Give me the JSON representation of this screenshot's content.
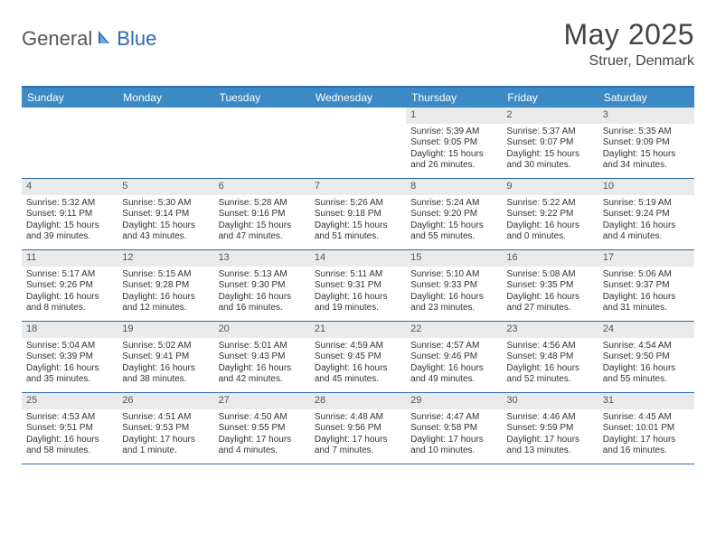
{
  "logo": {
    "word1": "General",
    "word2": "Blue"
  },
  "title": "May 2025",
  "location": "Struer, Denmark",
  "day_names": [
    "Sunday",
    "Monday",
    "Tuesday",
    "Wednesday",
    "Thursday",
    "Friday",
    "Saturday"
  ],
  "colors": {
    "header_bar": "#3b8ac4",
    "rule": "#2f6aad",
    "daynum_bg": "#e9eaeb",
    "text": "#333333",
    "logo_accent": "#2f6aad"
  },
  "weeks": [
    [
      {
        "n": "",
        "sr": "",
        "ss": "",
        "dl": ""
      },
      {
        "n": "",
        "sr": "",
        "ss": "",
        "dl": ""
      },
      {
        "n": "",
        "sr": "",
        "ss": "",
        "dl": ""
      },
      {
        "n": "",
        "sr": "",
        "ss": "",
        "dl": ""
      },
      {
        "n": "1",
        "sr": "Sunrise: 5:39 AM",
        "ss": "Sunset: 9:05 PM",
        "dl": "Daylight: 15 hours and 26 minutes."
      },
      {
        "n": "2",
        "sr": "Sunrise: 5:37 AM",
        "ss": "Sunset: 9:07 PM",
        "dl": "Daylight: 15 hours and 30 minutes."
      },
      {
        "n": "3",
        "sr": "Sunrise: 5:35 AM",
        "ss": "Sunset: 9:09 PM",
        "dl": "Daylight: 15 hours and 34 minutes."
      }
    ],
    [
      {
        "n": "4",
        "sr": "Sunrise: 5:32 AM",
        "ss": "Sunset: 9:11 PM",
        "dl": "Daylight: 15 hours and 39 minutes."
      },
      {
        "n": "5",
        "sr": "Sunrise: 5:30 AM",
        "ss": "Sunset: 9:14 PM",
        "dl": "Daylight: 15 hours and 43 minutes."
      },
      {
        "n": "6",
        "sr": "Sunrise: 5:28 AM",
        "ss": "Sunset: 9:16 PM",
        "dl": "Daylight: 15 hours and 47 minutes."
      },
      {
        "n": "7",
        "sr": "Sunrise: 5:26 AM",
        "ss": "Sunset: 9:18 PM",
        "dl": "Daylight: 15 hours and 51 minutes."
      },
      {
        "n": "8",
        "sr": "Sunrise: 5:24 AM",
        "ss": "Sunset: 9:20 PM",
        "dl": "Daylight: 15 hours and 55 minutes."
      },
      {
        "n": "9",
        "sr": "Sunrise: 5:22 AM",
        "ss": "Sunset: 9:22 PM",
        "dl": "Daylight: 16 hours and 0 minutes."
      },
      {
        "n": "10",
        "sr": "Sunrise: 5:19 AM",
        "ss": "Sunset: 9:24 PM",
        "dl": "Daylight: 16 hours and 4 minutes."
      }
    ],
    [
      {
        "n": "11",
        "sr": "Sunrise: 5:17 AM",
        "ss": "Sunset: 9:26 PM",
        "dl": "Daylight: 16 hours and 8 minutes."
      },
      {
        "n": "12",
        "sr": "Sunrise: 5:15 AM",
        "ss": "Sunset: 9:28 PM",
        "dl": "Daylight: 16 hours and 12 minutes."
      },
      {
        "n": "13",
        "sr": "Sunrise: 5:13 AM",
        "ss": "Sunset: 9:30 PM",
        "dl": "Daylight: 16 hours and 16 minutes."
      },
      {
        "n": "14",
        "sr": "Sunrise: 5:11 AM",
        "ss": "Sunset: 9:31 PM",
        "dl": "Daylight: 16 hours and 19 minutes."
      },
      {
        "n": "15",
        "sr": "Sunrise: 5:10 AM",
        "ss": "Sunset: 9:33 PM",
        "dl": "Daylight: 16 hours and 23 minutes."
      },
      {
        "n": "16",
        "sr": "Sunrise: 5:08 AM",
        "ss": "Sunset: 9:35 PM",
        "dl": "Daylight: 16 hours and 27 minutes."
      },
      {
        "n": "17",
        "sr": "Sunrise: 5:06 AM",
        "ss": "Sunset: 9:37 PM",
        "dl": "Daylight: 16 hours and 31 minutes."
      }
    ],
    [
      {
        "n": "18",
        "sr": "Sunrise: 5:04 AM",
        "ss": "Sunset: 9:39 PM",
        "dl": "Daylight: 16 hours and 35 minutes."
      },
      {
        "n": "19",
        "sr": "Sunrise: 5:02 AM",
        "ss": "Sunset: 9:41 PM",
        "dl": "Daylight: 16 hours and 38 minutes."
      },
      {
        "n": "20",
        "sr": "Sunrise: 5:01 AM",
        "ss": "Sunset: 9:43 PM",
        "dl": "Daylight: 16 hours and 42 minutes."
      },
      {
        "n": "21",
        "sr": "Sunrise: 4:59 AM",
        "ss": "Sunset: 9:45 PM",
        "dl": "Daylight: 16 hours and 45 minutes."
      },
      {
        "n": "22",
        "sr": "Sunrise: 4:57 AM",
        "ss": "Sunset: 9:46 PM",
        "dl": "Daylight: 16 hours and 49 minutes."
      },
      {
        "n": "23",
        "sr": "Sunrise: 4:56 AM",
        "ss": "Sunset: 9:48 PM",
        "dl": "Daylight: 16 hours and 52 minutes."
      },
      {
        "n": "24",
        "sr": "Sunrise: 4:54 AM",
        "ss": "Sunset: 9:50 PM",
        "dl": "Daylight: 16 hours and 55 minutes."
      }
    ],
    [
      {
        "n": "25",
        "sr": "Sunrise: 4:53 AM",
        "ss": "Sunset: 9:51 PM",
        "dl": "Daylight: 16 hours and 58 minutes."
      },
      {
        "n": "26",
        "sr": "Sunrise: 4:51 AM",
        "ss": "Sunset: 9:53 PM",
        "dl": "Daylight: 17 hours and 1 minute."
      },
      {
        "n": "27",
        "sr": "Sunrise: 4:50 AM",
        "ss": "Sunset: 9:55 PM",
        "dl": "Daylight: 17 hours and 4 minutes."
      },
      {
        "n": "28",
        "sr": "Sunrise: 4:48 AM",
        "ss": "Sunset: 9:56 PM",
        "dl": "Daylight: 17 hours and 7 minutes."
      },
      {
        "n": "29",
        "sr": "Sunrise: 4:47 AM",
        "ss": "Sunset: 9:58 PM",
        "dl": "Daylight: 17 hours and 10 minutes."
      },
      {
        "n": "30",
        "sr": "Sunrise: 4:46 AM",
        "ss": "Sunset: 9:59 PM",
        "dl": "Daylight: 17 hours and 13 minutes."
      },
      {
        "n": "31",
        "sr": "Sunrise: 4:45 AM",
        "ss": "Sunset: 10:01 PM",
        "dl": "Daylight: 17 hours and 16 minutes."
      }
    ]
  ]
}
